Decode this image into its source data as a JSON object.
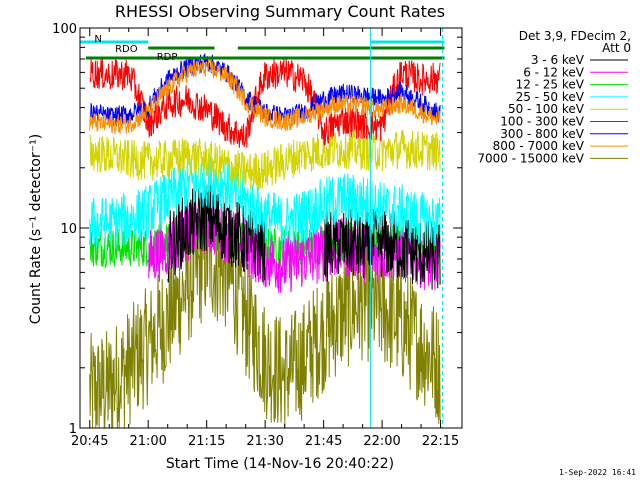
{
  "chart_data": {
    "type": "line",
    "title": "RHESSI Observing Summary Count Rates",
    "xlabel": "Start Time (14-Nov-16 20:40:22)",
    "ylabel": "Count Rate (s⁻¹ detector⁻¹)",
    "y_scale": "log",
    "ylim": [
      1,
      100
    ],
    "xlim_minutes": [
      -2.5,
      95.5
    ],
    "x_ticks": [
      {
        "label": "20:45",
        "minutes": 0
      },
      {
        "label": "21:00",
        "minutes": 15
      },
      {
        "label": "21:15",
        "minutes": 30
      },
      {
        "label": "21:30",
        "minutes": 45
      },
      {
        "label": "21:45",
        "minutes": 60
      },
      {
        "label": "22:00",
        "minutes": 75
      },
      {
        "label": "22:15",
        "minutes": 90
      }
    ],
    "y_tick_labels": [
      {
        "label": "100",
        "value": 100
      },
      {
        "label": "10",
        "value": 10
      },
      {
        "label": "1",
        "value": 1
      }
    ],
    "legend_header": [
      "Det 3,9, FDecim 2,",
      "Att 0"
    ],
    "legend_position": "right",
    "annotations": [
      {
        "text": "N",
        "color": "#00e5e5",
        "minutes": 1.2
      },
      {
        "text": "RDO",
        "color": "#008000",
        "minutes": 6.5
      },
      {
        "text": "RDP",
        "color": "#008000",
        "minutes": 0.5
      }
    ],
    "flags": [
      {
        "name": "N",
        "color": "#00e5e5",
        "segments": [
          [
            -2.5,
            15
          ],
          [
            72,
            91
          ]
        ]
      },
      {
        "name": "RDO",
        "color": "#008000",
        "segments": [
          [
            15,
            32
          ],
          [
            38,
            91
          ]
        ]
      },
      {
        "name": "RDP",
        "color": "#008000",
        "segments": [
          [
            -1,
            91
          ]
        ]
      }
    ],
    "vertical_markers": [
      {
        "minutes": 72,
        "color": "#00e5e5",
        "style": "solid"
      },
      {
        "minutes": 90.5,
        "color": "#00e5e5",
        "style": "dashed"
      }
    ],
    "time_minutes": [
      0,
      5,
      10,
      15,
      20,
      25,
      30,
      35,
      40,
      45,
      50,
      55,
      60,
      65,
      70,
      75,
      80,
      85,
      90
    ],
    "series": [
      {
        "name": "3 - 6 keV",
        "color": "#000000",
        "values": [
          null,
          null,
          null,
          null,
          8.0,
          10.0,
          11.5,
          10.0,
          8.5,
          8.0,
          null,
          null,
          8.0,
          8.5,
          8.0,
          8.5,
          8.0,
          7.5,
          7.0
        ]
      },
      {
        "name": "6 - 12 keV",
        "color": "#ff00ff",
        "values": [
          null,
          null,
          null,
          7.0,
          8.0,
          9.5,
          10.5,
          9.5,
          8.0,
          7.0,
          6.5,
          7.0,
          7.5,
          8.0,
          7.5,
          7.5,
          7.5,
          7.0,
          6.5
        ]
      },
      {
        "name": "12 - 25 keV",
        "color": "#00e000",
        "values": [
          8.0,
          8.0,
          8.0,
          8.0,
          8.5,
          9.0,
          10.0,
          9.0,
          8.5,
          8.0,
          8.0,
          8.0,
          8.5,
          8.5,
          8.5,
          8.5,
          8.5,
          8.0,
          8.0
        ]
      },
      {
        "name": "25 - 50 keV",
        "color": "#00ffff",
        "values": [
          10.5,
          10.5,
          11.0,
          12.0,
          14.0,
          16.5,
          17.5,
          16.5,
          13.5,
          11.5,
          10.5,
          11.5,
          13.0,
          14.0,
          13.5,
          12.5,
          12.0,
          11.0,
          10.5
        ]
      },
      {
        "name": "50 - 100 keV",
        "color": "#d4d400",
        "values": [
          24.0,
          23.0,
          22.0,
          21.5,
          22.0,
          23.0,
          22.0,
          20.5,
          19.0,
          19.5,
          21.5,
          23.5,
          24.5,
          25.0,
          24.5,
          24.0,
          25.0,
          24.5,
          24.0
        ]
      },
      {
        "name": "100 - 300 keV",
        "color": "#ff0000",
        "values": [
          60,
          58,
          59,
          33,
          42,
          44,
          39,
          32,
          28,
          58,
          60,
          55,
          30,
          35,
          33,
          32,
          60,
          55,
          57
        ]
      },
      {
        "name": "300 - 800 keV",
        "color": "#0000ff",
        "values": [
          38,
          36,
          37,
          40,
          55,
          64,
          68,
          60,
          45,
          38,
          36,
          38,
          44,
          47,
          46,
          44,
          48,
          42,
          37
        ]
      },
      {
        "name": "800 - 7000 keV",
        "color": "#ff8c00",
        "values": [
          34,
          33,
          33,
          38,
          50,
          60,
          64,
          58,
          43,
          36,
          34,
          36,
          40,
          42,
          41,
          39,
          42,
          38,
          34
        ]
      },
      {
        "name": "7000 - 15000 keV",
        "color": "#808000",
        "values": [
          1.5,
          1.6,
          2.0,
          2.6,
          3.5,
          5.0,
          7.0,
          6.0,
          3.5,
          2.2,
          1.8,
          2.2,
          3.0,
          3.8,
          4.3,
          4.0,
          3.3,
          2.6,
          2.0
        ]
      }
    ]
  },
  "footer": {
    "timestamp": "1-Sep-2022 16:41"
  }
}
